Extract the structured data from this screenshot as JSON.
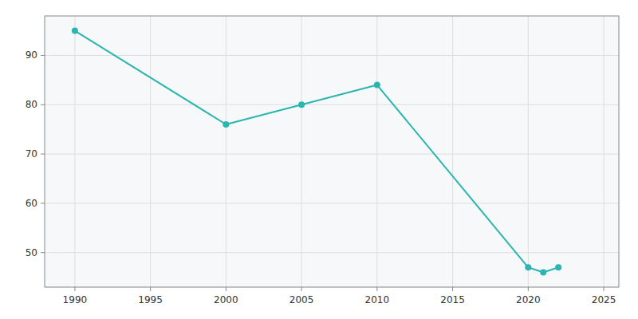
{
  "chart_data": {
    "type": "line",
    "x": [
      1990,
      2000,
      2005,
      2010,
      2020,
      2021,
      2022
    ],
    "values": [
      95,
      76,
      80,
      84,
      47,
      46,
      47
    ],
    "color": "#2ab5b0",
    "marker": "circle",
    "xlim": [
      1988,
      2026
    ],
    "ylim": [
      43,
      98
    ],
    "xticks": [
      1990,
      1995,
      2000,
      2005,
      2010,
      2015,
      2020,
      2025
    ],
    "yticks": [
      50,
      60,
      70,
      80,
      90
    ],
    "grid": true
  }
}
